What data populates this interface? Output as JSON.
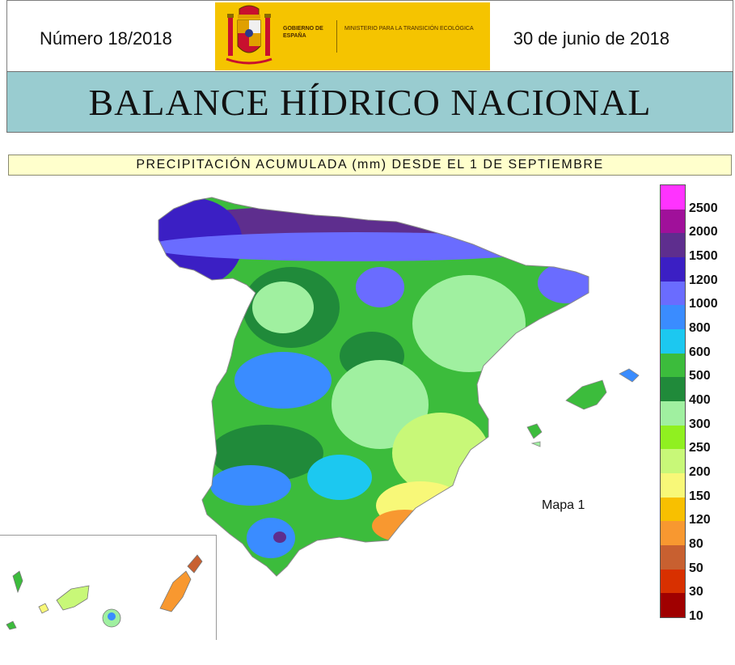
{
  "header": {
    "issue": "Número 18/2018",
    "date": "30 de junio de 2018",
    "logo_gov": "GOBIERNO DE ESPAÑA",
    "logo_ministry": "MINISTERIO PARA LA TRANSICIÓN ECOLÓGICA"
  },
  "title": "BALANCE HÍDRICO NACIONAL",
  "subtitle": "PRECIPITACIÓN ACUMULADA (mm) DESDE EL 1 DE SEPTIEMBRE",
  "map_label": "Mapa 1",
  "legend": {
    "levels": [
      "2500",
      "2000",
      "1500",
      "1200",
      "1000",
      "800",
      "600",
      "500",
      "400",
      "300",
      "250",
      "200",
      "150",
      "120",
      "80",
      "50",
      "30",
      "10"
    ],
    "colors": [
      "#ff33ff",
      "#a0109a",
      "#5e2e8e",
      "#3b1fc4",
      "#6a6cff",
      "#3a8cff",
      "#1cc8f0",
      "#3cbc3c",
      "#208a3a",
      "#a0f0a0",
      "#90f020",
      "#c8f878",
      "#f8f878",
      "#f8c000",
      "#f89830",
      "#c86030",
      "#d83000",
      "#a00000"
    ]
  },
  "colors": {
    "banner": "#99ccd0",
    "subtitle_bg": "#ffffcc",
    "logo": "#f5c400"
  }
}
